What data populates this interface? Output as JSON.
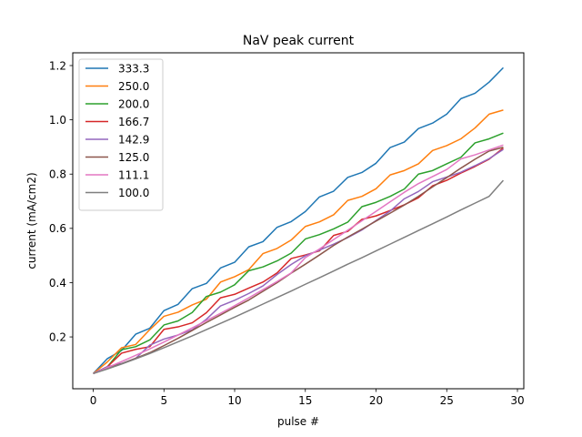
{
  "chart_data": {
    "type": "line",
    "title": "NaV peak current",
    "xlabel": "pulse #",
    "ylabel": "current (mA/cm2)",
    "xlim": [
      -1.45,
      30.45
    ],
    "ylim": [
      0.009,
      1.247
    ],
    "xticks": [
      0,
      5,
      10,
      15,
      20,
      25,
      30
    ],
    "xtick_labels": [
      "0",
      "5",
      "10",
      "15",
      "20",
      "25",
      "30"
    ],
    "yticks": [
      0.2,
      0.4,
      0.6,
      0.8,
      1.0,
      1.2
    ],
    "ytick_labels": [
      "0.2",
      "0.4",
      "0.6",
      "0.8",
      "1.0",
      "1.2"
    ],
    "grid": false,
    "legend_position": "top-left",
    "x": [
      0,
      1,
      2,
      3,
      4,
      5,
      6,
      7,
      8,
      9,
      10,
      11,
      12,
      13,
      14,
      15,
      16,
      17,
      18,
      19,
      20,
      21,
      22,
      23,
      24,
      25,
      26,
      27,
      28,
      29
    ],
    "series": [
      {
        "name": "333.3",
        "color": "#1f77b4",
        "values": [
          0.065,
          0.12,
          0.15,
          0.21,
          0.232,
          0.297,
          0.32,
          0.378,
          0.397,
          0.454,
          0.475,
          0.532,
          0.551,
          0.604,
          0.625,
          0.662,
          0.716,
          0.737,
          0.788,
          0.806,
          0.84,
          0.898,
          0.918,
          0.968,
          0.988,
          1.021,
          1.078,
          1.098,
          1.139,
          1.192
        ]
      },
      {
        "name": "250.0",
        "color": "#ff7f0e",
        "values": [
          0.065,
          0.108,
          0.16,
          0.172,
          0.227,
          0.276,
          0.291,
          0.318,
          0.339,
          0.402,
          0.422,
          0.448,
          0.507,
          0.526,
          0.557,
          0.607,
          0.624,
          0.65,
          0.703,
          0.718,
          0.746,
          0.797,
          0.813,
          0.838,
          0.887,
          0.905,
          0.93,
          0.97,
          1.021,
          1.036
        ]
      },
      {
        "name": "200.0",
        "color": "#2ca02c",
        "values": [
          0.065,
          0.09,
          0.153,
          0.164,
          0.189,
          0.244,
          0.259,
          0.29,
          0.349,
          0.365,
          0.392,
          0.444,
          0.458,
          0.48,
          0.509,
          0.561,
          0.577,
          0.598,
          0.623,
          0.68,
          0.696,
          0.718,
          0.745,
          0.8,
          0.813,
          0.838,
          0.862,
          0.915,
          0.93,
          0.951
        ]
      },
      {
        "name": "166.7",
        "color": "#d62728",
        "values": [
          0.065,
          0.09,
          0.14,
          0.154,
          0.164,
          0.228,
          0.237,
          0.252,
          0.289,
          0.344,
          0.357,
          0.38,
          0.402,
          0.436,
          0.489,
          0.502,
          0.517,
          0.574,
          0.589,
          0.633,
          0.646,
          0.666,
          0.687,
          0.713,
          0.757,
          0.777,
          0.804,
          0.828,
          0.855,
          0.896
        ]
      },
      {
        "name": "142.9",
        "color": "#9467bd",
        "values": [
          0.065,
          0.09,
          0.102,
          0.121,
          0.17,
          0.192,
          0.207,
          0.226,
          0.265,
          0.314,
          0.335,
          0.36,
          0.388,
          0.43,
          0.467,
          0.499,
          0.52,
          0.542,
          0.566,
          0.594,
          0.629,
          0.664,
          0.709,
          0.736,
          0.772,
          0.789,
          0.807,
          0.831,
          0.857,
          0.891
        ]
      },
      {
        "name": "125.0",
        "color": "#8c564b",
        "values": [
          0.065,
          0.085,
          0.101,
          0.121,
          0.142,
          0.168,
          0.195,
          0.224,
          0.253,
          0.281,
          0.309,
          0.336,
          0.368,
          0.4,
          0.435,
          0.468,
          0.502,
          0.537,
          0.568,
          0.597,
          0.627,
          0.656,
          0.686,
          0.718,
          0.753,
          0.787,
          0.822,
          0.855,
          0.885,
          0.899
        ]
      },
      {
        "name": "111.1",
        "color": "#e377c2",
        "values": [
          0.065,
          0.087,
          0.109,
          0.132,
          0.156,
          0.181,
          0.207,
          0.233,
          0.26,
          0.287,
          0.315,
          0.344,
          0.374,
          0.404,
          0.436,
          0.492,
          0.524,
          0.559,
          0.593,
          0.628,
          0.663,
          0.698,
          0.733,
          0.765,
          0.791,
          0.817,
          0.856,
          0.871,
          0.889,
          0.907
        ]
      },
      {
        "name": "100.0",
        "color": "#7f7f7f",
        "values": [
          0.065,
          0.082,
          0.1,
          0.119,
          0.139,
          0.16,
          0.182,
          0.204,
          0.227,
          0.25,
          0.273,
          0.297,
          0.321,
          0.345,
          0.369,
          0.394,
          0.418,
          0.443,
          0.468,
          0.492,
          0.517,
          0.542,
          0.567,
          0.592,
          0.617,
          0.642,
          0.668,
          0.693,
          0.718,
          0.777
        ]
      }
    ]
  }
}
